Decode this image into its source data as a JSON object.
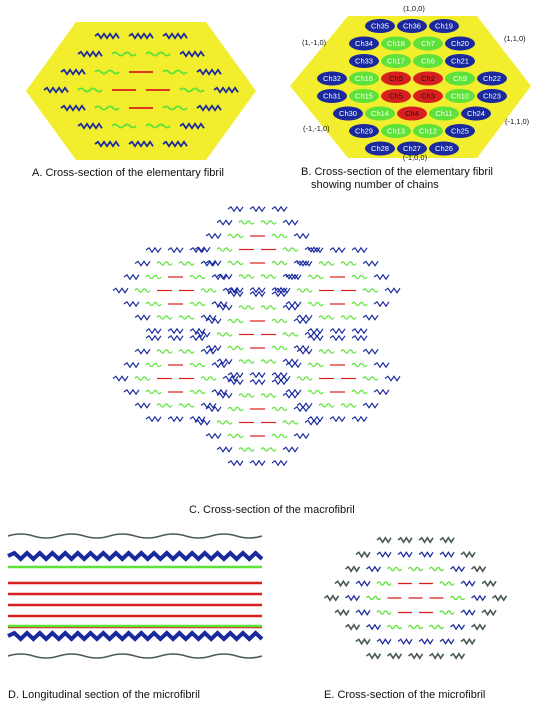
{
  "captions": {
    "a": "A. Cross-section of the elementary fibril",
    "b_line1": "B. Cross-section of the elementary fibril",
    "b_line2": "showing number of chains",
    "c": "C. Cross-section of the macrofibril",
    "d": "D. Longitudinal section of the microfibril",
    "e": "E. Cross-section of the microfibril"
  },
  "lattice_labels": {
    "top": "(1,0,0)",
    "top_left": "(1,-1,0)",
    "top_right": "(1,1,0)",
    "bottom_left": "(-1,-1,0)",
    "bottom_right": "(-1,1,0)",
    "bottom": "(-1,0,0)"
  },
  "chain_rows": [
    [
      {
        "id": "Ch35",
        "type": "blue"
      },
      {
        "id": "Ch36",
        "type": "blue"
      },
      {
        "id": "Ch19",
        "type": "blue"
      }
    ],
    [
      {
        "id": "Ch34",
        "type": "blue"
      },
      {
        "id": "Ch18",
        "type": "green"
      },
      {
        "id": "Ch7",
        "type": "green"
      },
      {
        "id": "Ch20",
        "type": "blue"
      }
    ],
    [
      {
        "id": "Ch33",
        "type": "blue"
      },
      {
        "id": "Ch17",
        "type": "green"
      },
      {
        "id": "Ch6",
        "type": "green"
      },
      {
        "id": "Ch21",
        "type": "blue"
      }
    ],
    [
      {
        "id": "Ch32",
        "type": "blue"
      },
      {
        "id": "Ch16",
        "type": "green"
      },
      {
        "id": "Ch5",
        "type": "red"
      },
      {
        "id": "Ch2",
        "type": "red"
      },
      {
        "id": "Ch9",
        "type": "green"
      },
      {
        "id": "Ch22",
        "type": "blue"
      }
    ],
    [
      {
        "id": "Ch31",
        "type": "blue"
      },
      {
        "id": "Ch15",
        "type": "green"
      },
      {
        "id": "Ch5",
        "type": "red"
      },
      {
        "id": "Ch3",
        "type": "red"
      },
      {
        "id": "Ch10",
        "type": "green"
      },
      {
        "id": "Ch23",
        "type": "blue"
      }
    ],
    [
      {
        "id": "Ch30",
        "type": "blue"
      },
      {
        "id": "Ch14",
        "type": "green"
      },
      {
        "id": "Ch4",
        "type": "red"
      },
      {
        "id": "Ch11",
        "type": "green"
      },
      {
        "id": "Ch24",
        "type": "blue"
      }
    ],
    [
      {
        "id": "Ch29",
        "type": "blue"
      },
      {
        "id": "Ch13",
        "type": "green"
      },
      {
        "id": "Ch12",
        "type": "green"
      },
      {
        "id": "Ch25",
        "type": "blue"
      }
    ],
    [
      {
        "id": "Ch28",
        "type": "blue"
      },
      {
        "id": "Ch27",
        "type": "blue"
      },
      {
        "id": "Ch26",
        "type": "blue"
      }
    ]
  ],
  "colors": {
    "fibril_fill": "#f2ee2e",
    "blue_chain": "#1a2a9e",
    "green_chain": "#5ee23a",
    "red_chain": "#d81f1f",
    "grey_chain": "#4a5a56",
    "label_text": "#ffffff"
  }
}
